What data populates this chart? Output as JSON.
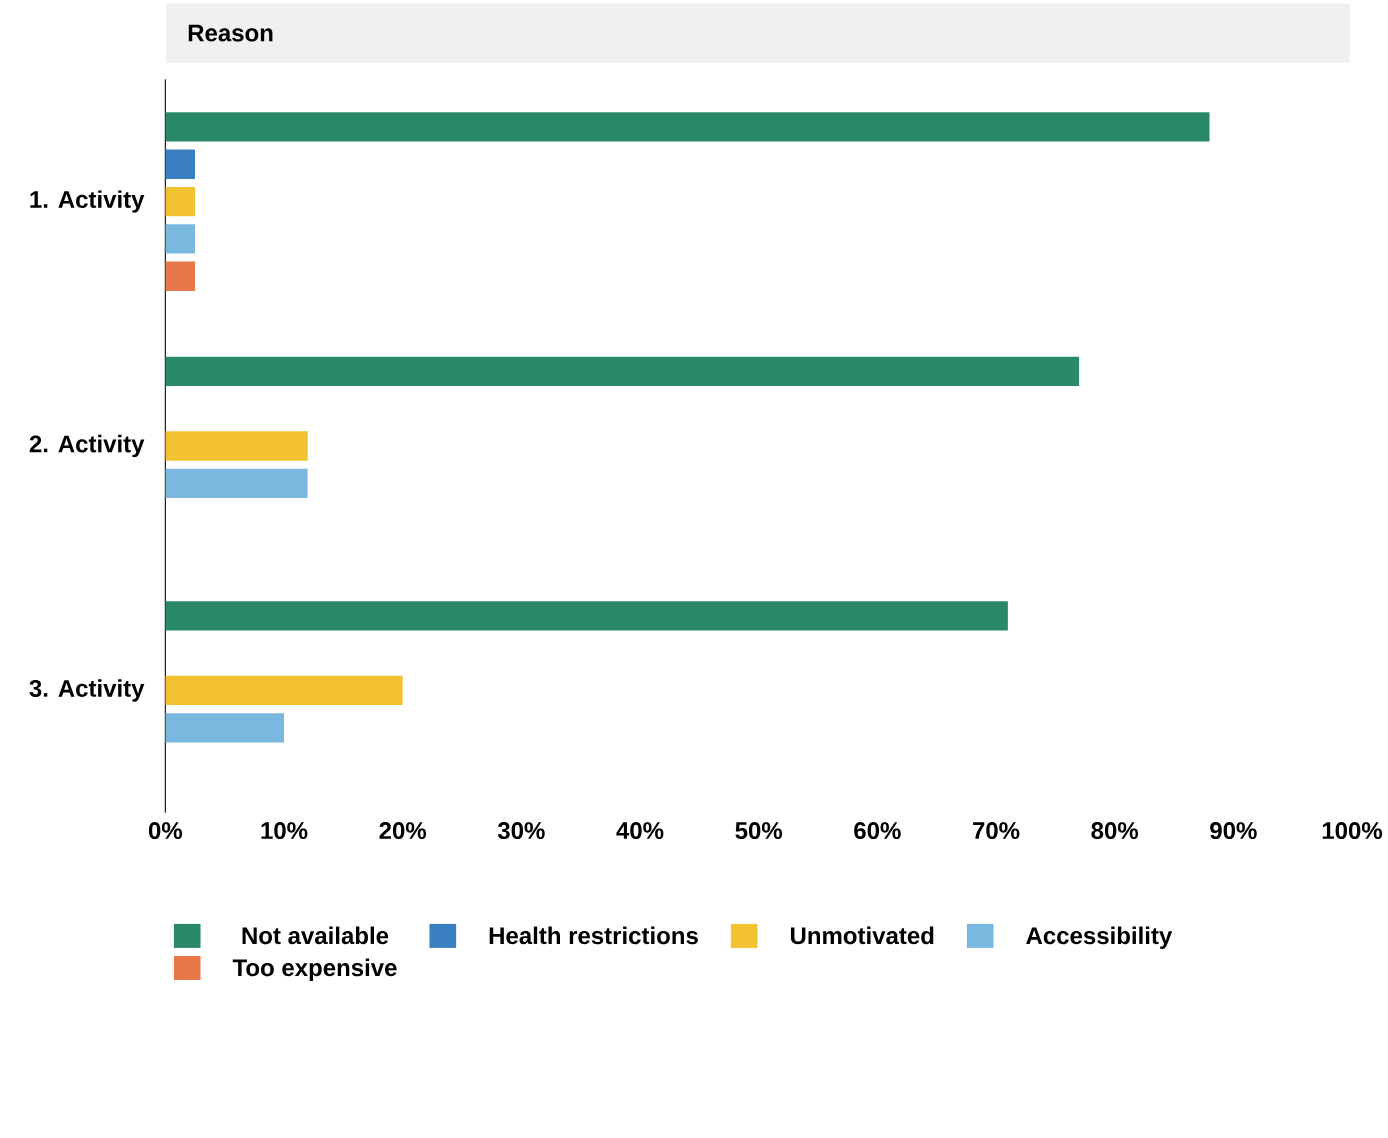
{
  "chart_data": {
    "type": "bar",
    "orientation": "horizontal",
    "title": "Reason",
    "categories": [
      "1. Activity",
      "2. Activity",
      "3. Activity"
    ],
    "series": [
      {
        "name": "Not available",
        "color": "#2a8a68",
        "values": [
          88,
          77,
          71
        ]
      },
      {
        "name": "Health restrictions",
        "color": "#3a7fc1",
        "values": [
          2.5,
          null,
          null
        ]
      },
      {
        "name": "Unmotivated",
        "color": "#f2c230",
        "values": [
          2.5,
          12,
          20
        ]
      },
      {
        "name": "Accessibility",
        "color": "#7ab8e0",
        "values": [
          2.5,
          12,
          10
        ]
      },
      {
        "name": "Too expensive",
        "color": "#e8784a",
        "values": [
          2.5,
          null,
          null
        ]
      }
    ],
    "xlim": [
      0,
      100
    ],
    "xticks": [
      {
        "value": 0,
        "label": "0%"
      },
      {
        "value": 10,
        "label": "10%"
      },
      {
        "value": 20,
        "label": "20%"
      },
      {
        "value": 30,
        "label": "30%"
      },
      {
        "value": 40,
        "label": "40%"
      },
      {
        "value": 50,
        "label": "50%"
      },
      {
        "value": 60,
        "label": "60%"
      },
      {
        "value": 70,
        "label": "70%"
      },
      {
        "value": 80,
        "label": "80%"
      },
      {
        "value": 90,
        "label": "90%"
      },
      {
        "value": 100,
        "label": "100%"
      }
    ],
    "legend": "bottom",
    "grid": false
  }
}
